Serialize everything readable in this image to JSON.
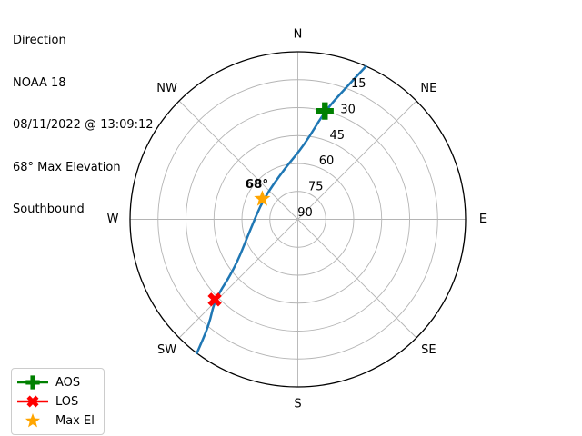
{
  "header": {
    "lines": [
      "Direction",
      "NOAA 18",
      "08/11/2022 @ 13:09:12",
      "68° Max Elevation",
      "Southbound"
    ]
  },
  "legend": {
    "items": [
      {
        "label": "AOS",
        "marker": "plus",
        "color": "#008000",
        "has_line": true
      },
      {
        "label": "LOS",
        "marker": "x",
        "color": "#ff0000",
        "has_line": true
      },
      {
        "label": "Max El",
        "marker": "star",
        "color": "#ffa500",
        "has_line": false
      }
    ]
  },
  "chart_data": {
    "type": "polar",
    "projection": "azimuth-elevation",
    "satellite": "NOAA 18",
    "pass_time": "08/11/2022 @ 13:09:12",
    "direction": "Southbound",
    "max_elevation_deg": 68,
    "compass_labels": [
      "N",
      "NE",
      "E",
      "SE",
      "S",
      "SW",
      "W",
      "NW"
    ],
    "elevation_ticks": [
      15,
      30,
      45,
      60,
      75,
      90
    ],
    "elevation_range": [
      0,
      90
    ],
    "grid": true,
    "grid_color": "#b4b4b4",
    "outline_color": "#000000",
    "rlabel_azimuth_deg": 22.5,
    "track": {
      "name": "satellite-pass-track",
      "color": "#1f77b4",
      "points_az_el": [
        [
          24,
          0
        ],
        [
          20,
          15
        ],
        [
          14,
          30
        ],
        [
          5,
          50
        ],
        [
          345,
          62
        ],
        [
          301,
          68.5
        ],
        [
          258,
          64
        ],
        [
          232,
          47
        ],
        [
          226,
          28
        ],
        [
          220,
          16
        ],
        [
          217,
          0
        ]
      ]
    },
    "markers": [
      {
        "name": "AOS",
        "shape": "plus",
        "color": "#008000",
        "az": 14,
        "el": 30
      },
      {
        "name": "LOS",
        "shape": "x",
        "color": "#ff0000",
        "az": 226,
        "el": 28
      },
      {
        "name": "Max El",
        "shape": "star",
        "color": "#ffa500",
        "az": 300,
        "el": 68
      }
    ],
    "annotation": {
      "text": "68°",
      "az": 300,
      "el": 68
    }
  }
}
